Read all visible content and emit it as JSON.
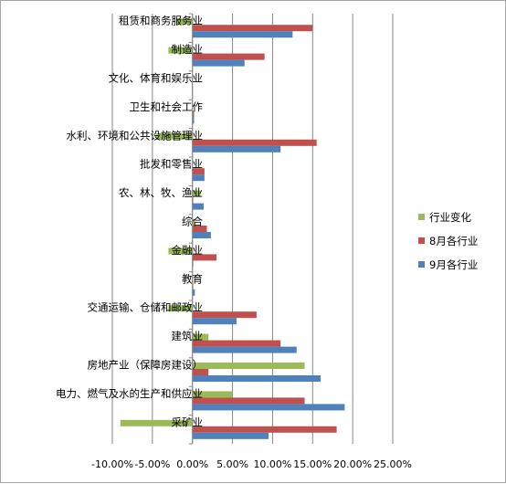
{
  "chart_data": {
    "type": "bar",
    "orientation": "horizontal",
    "title": "",
    "xlabel": "",
    "ylabel": "",
    "xlim": [
      -10,
      25
    ],
    "x_ticks": [
      "-10.00%",
      "-5.00%",
      "0.00%",
      "5.00%",
      "10.00%",
      "15.00%",
      "20.00%",
      "25.00%"
    ],
    "grid": true,
    "legend_position": "right",
    "categories": [
      "租赁和商务服务业",
      "制造业",
      "文化、体育和娱乐业",
      "卫生和社会工作",
      "水利、环境和公共设施管理业",
      "批发和零售业",
      "农、林、牧、渔业",
      "综合",
      "金融业",
      "教育",
      "交通运输、仓储和邮政业",
      "建筑业",
      "房地产业（保障房建设）",
      "电力、燃气及水的生产和供应业",
      "采矿业"
    ],
    "series": [
      {
        "name": "行业变化",
        "color": "#9bbb59",
        "values": [
          -2.0,
          -3.0,
          0.0,
          0.0,
          -4.5,
          0.0,
          1.0,
          0.3,
          -3.0,
          0.1,
          -3.0,
          2.0,
          14.0,
          5.0,
          -9.0
        ]
      },
      {
        "name": "8月各行业",
        "color": "#c0504d",
        "values": [
          15.0,
          9.0,
          0.0,
          0.2,
          15.5,
          1.5,
          0.1,
          1.8,
          3.0,
          0.1,
          8.0,
          11.0,
          2.0,
          14.0,
          18.0
        ]
      },
      {
        "name": "9月各行业",
        "color": "#4f81bd",
        "values": [
          12.5,
          6.5,
          0.0,
          0.2,
          11.0,
          1.5,
          1.4,
          2.3,
          0.1,
          0.3,
          5.5,
          13.0,
          16.0,
          19.0,
          9.5
        ]
      }
    ]
  }
}
